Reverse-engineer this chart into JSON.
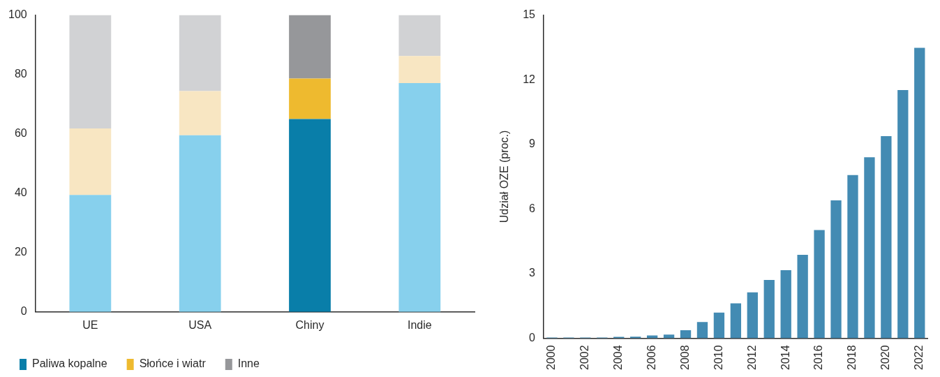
{
  "chart_data": [
    {
      "type": "bar",
      "stacked": true,
      "categories": [
        "UE",
        "USA",
        "Chiny",
        "Indie"
      ],
      "ylim": [
        0,
        100
      ],
      "yticks": [
        0,
        20,
        40,
        60,
        80,
        100
      ],
      "grid": false,
      "legend": "bottom left",
      "series": [
        {
          "name": "Paliwa kopalne",
          "color": "#097ea9",
          "colors": [
            "#87d0ed",
            "#87d0ed",
            "#097ea9",
            "#87d0ed"
          ],
          "values": [
            39.4,
            59.5,
            65.0,
            77.1
          ]
        },
        {
          "name": "Słońce i wiatr",
          "color": "#eeba2f",
          "colors": [
            "#f8e6c2",
            "#f8e6c2",
            "#eeba2f",
            "#f8e6c2"
          ],
          "values": [
            22.4,
            14.9,
            13.6,
            9.1
          ]
        },
        {
          "name": "Inne",
          "color": "#96979a",
          "colors": [
            "#d1d2d4",
            "#d1d2d4",
            "#96979a",
            "#d1d2d4"
          ],
          "values": [
            38.2,
            25.6,
            21.4,
            13.8
          ]
        }
      ]
    },
    {
      "type": "bar",
      "ylabel": "Udział OZE (proc.)",
      "categories": [
        "2000",
        null,
        "2002",
        null,
        "2004",
        null,
        "2006",
        null,
        "2008",
        null,
        "2010",
        null,
        "2012",
        null,
        "2014",
        null,
        "2016",
        null,
        "2018",
        null,
        "2020",
        null,
        "2022"
      ],
      "ylim": [
        0,
        15
      ],
      "yticks": [
        0,
        3,
        6,
        9,
        12,
        15
      ],
      "grid": false,
      "legend": false,
      "series": [
        {
          "color": "#438bb3",
          "values": [
            0.03,
            0.03,
            0.03,
            0.03,
            0.06,
            0.07,
            0.13,
            0.17,
            0.37,
            0.75,
            1.19,
            1.62,
            2.13,
            2.7,
            3.16,
            3.87,
            5.02,
            6.4,
            7.57,
            8.4,
            9.38,
            11.52,
            13.48
          ]
        }
      ]
    }
  ]
}
